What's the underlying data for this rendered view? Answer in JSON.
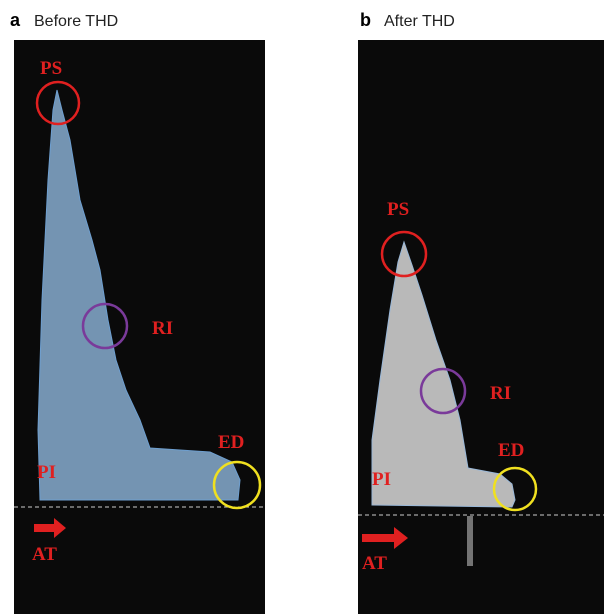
{
  "panels": [
    {
      "letter": "a",
      "title": "Before THD",
      "labels": {
        "ps": "PS",
        "ri": "RI",
        "ed": "ED",
        "pi": "PI",
        "at": "AT"
      }
    },
    {
      "letter": "b",
      "title": "After THD",
      "labels": {
        "ps": "PS",
        "ri": "RI",
        "ed": "ED",
        "pi": "PI",
        "at": "AT"
      }
    }
  ]
}
